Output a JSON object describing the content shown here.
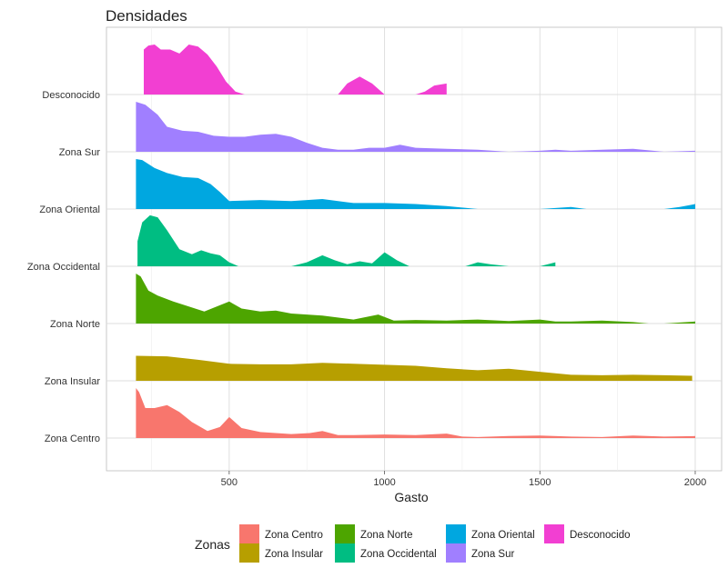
{
  "chart_data": {
    "type": "area",
    "subtype": "ridgeline-density",
    "title": "Densidades",
    "xlabel": "Gasto",
    "ylabel": "",
    "xlim": [
      105,
      2085
    ],
    "x_ticks": [
      500,
      1000,
      1500,
      2000
    ],
    "grid": true,
    "legend": {
      "title": "Zonas",
      "position": "bottom",
      "entries": [
        "Zona Centro",
        "Zona Insular",
        "Zona Norte",
        "Zona Occidental",
        "Zona Oriental",
        "Zona Sur",
        "Desconocido"
      ]
    },
    "categories": [
      "Zona Centro",
      "Zona Insular",
      "Zona Norte",
      "Zona Occidental",
      "Zona Oriental",
      "Zona Sur",
      "Desconocido"
    ],
    "series": [
      {
        "name": "Zona Centro",
        "color": "#F8766D",
        "x": [
          200,
          210,
          230,
          260,
          300,
          340,
          380,
          430,
          470,
          500,
          540,
          600,
          650,
          700,
          760,
          800,
          850,
          900,
          1000,
          1100,
          1200,
          1250,
          1300,
          1400,
          1500,
          1600,
          1700,
          1800,
          1900,
          2000
        ],
        "y": [
          1.0,
          0.92,
          0.6,
          0.6,
          0.66,
          0.52,
          0.32,
          0.14,
          0.22,
          0.42,
          0.2,
          0.12,
          0.1,
          0.08,
          0.1,
          0.14,
          0.06,
          0.06,
          0.07,
          0.06,
          0.09,
          0.03,
          0.02,
          0.04,
          0.05,
          0.03,
          0.02,
          0.05,
          0.03,
          0.04
        ]
      },
      {
        "name": "Zona Insular",
        "color": "#B79F00",
        "x": [
          200,
          300,
          400,
          500,
          600,
          700,
          800,
          900,
          1000,
          1100,
          1200,
          1300,
          1400,
          1500,
          1600,
          1700,
          1800,
          1900,
          1990
        ],
        "y": [
          0.5,
          0.49,
          0.42,
          0.34,
          0.33,
          0.33,
          0.36,
          0.34,
          0.32,
          0.3,
          0.25,
          0.21,
          0.24,
          0.18,
          0.12,
          0.11,
          0.12,
          0.11,
          0.1
        ]
      },
      {
        "name": "Zona Norte",
        "color": "#4DA500",
        "x": [
          200,
          215,
          240,
          270,
          320,
          370,
          420,
          460,
          500,
          540,
          600,
          650,
          700,
          800,
          900,
          980,
          1030,
          1100,
          1200,
          1300,
          1400,
          1500,
          1550,
          1600,
          1700,
          1800,
          1850,
          1900,
          1950,
          2000
        ],
        "y": [
          1.0,
          0.94,
          0.66,
          0.56,
          0.44,
          0.34,
          0.24,
          0.34,
          0.44,
          0.3,
          0.24,
          0.26,
          0.2,
          0.16,
          0.08,
          0.18,
          0.06,
          0.07,
          0.06,
          0.08,
          0.05,
          0.08,
          0.04,
          0.04,
          0.06,
          0.03,
          0.0,
          0.0,
          0.02,
          0.04
        ]
      },
      {
        "name": "Zona Occidental",
        "color": "#00BD82",
        "x": [
          205,
          220,
          245,
          270,
          300,
          340,
          380,
          410,
          440,
          470,
          500,
          530,
          560,
          600,
          660,
          700,
          750,
          800,
          840,
          880,
          920,
          960,
          1000,
          1040,
          1080,
          1130,
          1200,
          1260,
          1300,
          1340,
          1400,
          1450,
          1500,
          1550
        ],
        "y": [
          0.5,
          0.88,
          1.02,
          0.98,
          0.72,
          0.34,
          0.24,
          0.32,
          0.26,
          0.22,
          0.08,
          0.0,
          0.0,
          0.0,
          0.0,
          0.0,
          0.08,
          0.22,
          0.12,
          0.04,
          0.1,
          0.06,
          0.28,
          0.12,
          0.0,
          0.0,
          0.0,
          0.0,
          0.08,
          0.04,
          0.0,
          0.0,
          0.0,
          0.08
        ]
      },
      {
        "name": "Zona Oriental",
        "color": "#00A7E0",
        "x": [
          200,
          220,
          260,
          300,
          350,
          400,
          440,
          470,
          500,
          600,
          700,
          800,
          900,
          1000,
          1100,
          1200,
          1300,
          1350,
          1400,
          1500,
          1550,
          1600,
          1650,
          1700,
          1800,
          1900,
          1950,
          2000
        ],
        "y": [
          1.0,
          0.98,
          0.82,
          0.72,
          0.64,
          0.62,
          0.5,
          0.34,
          0.16,
          0.18,
          0.16,
          0.2,
          0.12,
          0.12,
          0.1,
          0.06,
          0.0,
          0.0,
          0.0,
          0.0,
          0.02,
          0.04,
          0.0,
          0.0,
          0.0,
          0.0,
          0.04,
          0.1
        ]
      },
      {
        "name": "Zona Sur",
        "color": "#A07FFF",
        "x": [
          200,
          230,
          270,
          300,
          350,
          400,
          450,
          500,
          550,
          600,
          650,
          700,
          750,
          800,
          850,
          900,
          950,
          1000,
          1050,
          1100,
          1200,
          1300,
          1400,
          1500,
          1550,
          1600,
          1700,
          1800,
          1900,
          2000
        ],
        "y": [
          1.0,
          0.94,
          0.74,
          0.5,
          0.42,
          0.4,
          0.32,
          0.3,
          0.3,
          0.34,
          0.36,
          0.3,
          0.18,
          0.08,
          0.04,
          0.04,
          0.08,
          0.08,
          0.14,
          0.08,
          0.06,
          0.04,
          0.0,
          0.02,
          0.04,
          0.02,
          0.04,
          0.06,
          0.0,
          0.02
        ]
      },
      {
        "name": "Desconocido",
        "color": "#F23FD2",
        "x": [
          225,
          240,
          260,
          280,
          310,
          340,
          370,
          400,
          430,
          460,
          490,
          520,
          550,
          600,
          700,
          800,
          850,
          880,
          920,
          960,
          1000,
          1050,
          1100,
          1130,
          1160,
          1200
        ],
        "y": [
          0.9,
          0.98,
          1.0,
          0.9,
          0.9,
          0.82,
          1.0,
          0.96,
          0.8,
          0.56,
          0.26,
          0.06,
          0.0,
          0.0,
          0.0,
          0.0,
          0.0,
          0.22,
          0.36,
          0.22,
          0.0,
          0.0,
          0.0,
          0.06,
          0.18,
          0.22
        ]
      }
    ]
  }
}
